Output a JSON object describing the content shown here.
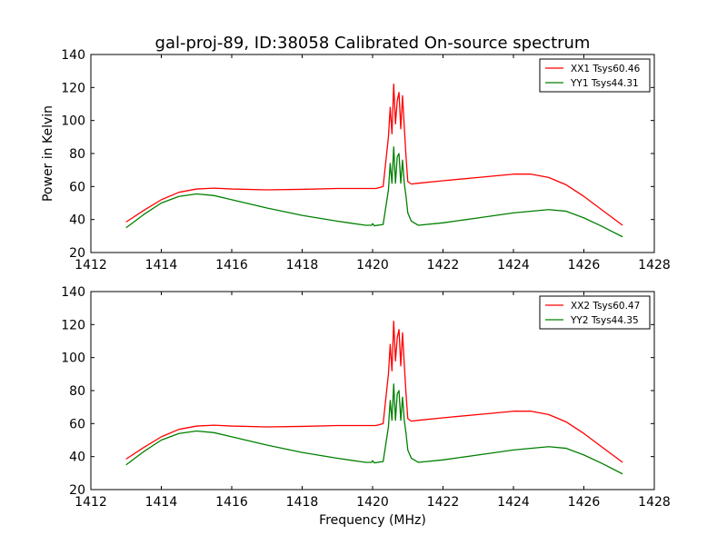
{
  "title": "gal-proj-89, ID:38058 Calibrated On-source spectrum",
  "chart_data": [
    {
      "type": "line",
      "title": "gal-proj-89, ID:38058 Calibrated On-source spectrum",
      "xlabel": "",
      "ylabel": "Power in Kelvin",
      "xlim": [
        1412,
        1428
      ],
      "ylim": [
        20,
        140
      ],
      "xticks": [
        "1412",
        "1414",
        "1416",
        "1418",
        "1420",
        "1422",
        "1424",
        "1426",
        "1428"
      ],
      "yticks": [
        "20",
        "40",
        "60",
        "80",
        "100",
        "120",
        "140"
      ],
      "grid": false,
      "legend_position": "top-right",
      "series": [
        {
          "name": "XX1 Tsys60.46",
          "color": "#ff0000",
          "x": [
            1413.0,
            1413.5,
            1414.0,
            1414.5,
            1415.0,
            1415.5,
            1416.0,
            1417.0,
            1418.0,
            1419.0,
            1419.8,
            1420.1,
            1420.3,
            1420.45,
            1420.5,
            1420.55,
            1420.6,
            1420.65,
            1420.7,
            1420.75,
            1420.8,
            1420.85,
            1420.9,
            1420.95,
            1421.0,
            1421.1,
            1421.3,
            1422.0,
            1423.0,
            1424.0,
            1424.5,
            1425.0,
            1425.5,
            1426.0,
            1426.5,
            1427.1
          ],
          "values": [
            38.5,
            45.5,
            52,
            56.5,
            58.5,
            59,
            58.5,
            58,
            58.3,
            58.8,
            58.8,
            58.8,
            60,
            90,
            108,
            92,
            122,
            98,
            112,
            117,
            95,
            115,
            96,
            78,
            63,
            61.5,
            62,
            63.5,
            65.5,
            67.5,
            67.5,
            65.5,
            61,
            54,
            46,
            36.5
          ]
        },
        {
          "name": "YY1 Tsys44.31",
          "color": "#008000",
          "x": [
            1413.0,
            1413.5,
            1414.0,
            1414.5,
            1415.0,
            1415.5,
            1416.0,
            1417.0,
            1418.0,
            1419.0,
            1419.8,
            1419.97,
            1420.0,
            1420.05,
            1420.3,
            1420.45,
            1420.5,
            1420.55,
            1420.6,
            1420.65,
            1420.7,
            1420.75,
            1420.8,
            1420.85,
            1420.9,
            1420.95,
            1421.0,
            1421.1,
            1421.3,
            1422.0,
            1423.0,
            1424.0,
            1425.0,
            1425.5,
            1426.0,
            1426.5,
            1427.1
          ],
          "values": [
            35,
            43,
            50,
            54,
            55.5,
            54.5,
            52,
            47,
            42.5,
            39,
            36.5,
            36.5,
            37.5,
            36.2,
            37,
            58,
            74,
            62,
            84,
            62,
            78,
            80,
            62,
            76,
            62,
            54,
            44,
            39,
            36.5,
            38,
            41,
            44,
            46,
            45,
            41,
            36,
            29.5
          ]
        }
      ]
    },
    {
      "type": "line",
      "title": "",
      "xlabel": "Frequency (MHz)",
      "ylabel": "",
      "xlim": [
        1412,
        1428
      ],
      "ylim": [
        20,
        140
      ],
      "xticks": [
        "1412",
        "1414",
        "1416",
        "1418",
        "1420",
        "1422",
        "1424",
        "1426",
        "1428"
      ],
      "yticks": [
        "20",
        "40",
        "60",
        "80",
        "100",
        "120",
        "140"
      ],
      "grid": false,
      "legend_position": "top-right",
      "series": [
        {
          "name": "XX2 Tsys60.47",
          "color": "#ff0000",
          "x": [
            1413.0,
            1413.5,
            1414.0,
            1414.5,
            1415.0,
            1415.5,
            1416.0,
            1417.0,
            1418.0,
            1419.0,
            1419.8,
            1420.1,
            1420.3,
            1420.45,
            1420.5,
            1420.55,
            1420.6,
            1420.65,
            1420.7,
            1420.75,
            1420.8,
            1420.85,
            1420.9,
            1420.95,
            1421.0,
            1421.1,
            1421.3,
            1422.0,
            1423.0,
            1424.0,
            1424.5,
            1425.0,
            1425.5,
            1426.0,
            1426.5,
            1427.1
          ],
          "values": [
            38.5,
            45.5,
            52,
            56.5,
            58.5,
            59,
            58.5,
            58,
            58.3,
            58.8,
            58.8,
            58.8,
            60,
            90,
            108,
            92,
            122,
            98,
            112,
            117,
            95,
            115,
            96,
            78,
            63,
            61.5,
            62,
            63.5,
            65.5,
            67.5,
            67.5,
            65.5,
            61,
            54,
            46,
            36.5
          ]
        },
        {
          "name": "YY2 Tsys44.35",
          "color": "#008000",
          "x": [
            1413.0,
            1413.5,
            1414.0,
            1414.5,
            1415.0,
            1415.5,
            1416.0,
            1417.0,
            1418.0,
            1419.0,
            1419.8,
            1419.97,
            1420.0,
            1420.05,
            1420.3,
            1420.45,
            1420.5,
            1420.55,
            1420.6,
            1420.65,
            1420.7,
            1420.75,
            1420.8,
            1420.85,
            1420.9,
            1420.95,
            1421.0,
            1421.1,
            1421.3,
            1422.0,
            1423.0,
            1424.0,
            1425.0,
            1425.5,
            1426.0,
            1426.5,
            1427.1
          ],
          "values": [
            35,
            43,
            50,
            54,
            55.5,
            54.5,
            52,
            47,
            42.5,
            39,
            36.5,
            36.5,
            37.5,
            36.2,
            37,
            58,
            74,
            62,
            84,
            62,
            78,
            80,
            62,
            76,
            62,
            54,
            44,
            39,
            36.5,
            38,
            41,
            44,
            46,
            45,
            41,
            36,
            29.5
          ]
        }
      ]
    }
  ]
}
